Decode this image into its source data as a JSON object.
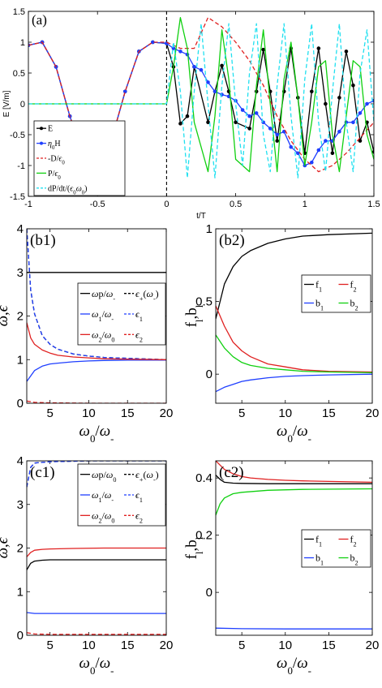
{
  "chart_data": [
    {
      "id": "a",
      "type": "line",
      "panel_label": "(a)",
      "xlabel": "t/T",
      "ylabel": "E [V/m]",
      "xlim": [
        -1,
        1.5
      ],
      "ylim": [
        -1.5,
        1.5
      ],
      "xticks": [
        "-1",
        "-0.5",
        "0",
        "0.5",
        "1",
        "1.5"
      ],
      "yticks": [
        "1.5",
        "1",
        "0.5",
        "0",
        "-0.5",
        "-1",
        "-1.5"
      ],
      "legend_position": "bottom-left",
      "vertical_line_x": 0,
      "series": [
        {
          "name": "E",
          "color": "#000000",
          "dash": "solid",
          "markers": true,
          "x": [
            -1,
            -0.9,
            -0.8,
            -0.7,
            -0.6,
            -0.5,
            -0.4,
            -0.3,
            -0.2,
            -0.1,
            0,
            0.05,
            0.1,
            0.15,
            0.2,
            0.3,
            0.35,
            0.4,
            0.45,
            0.5,
            0.6,
            0.65,
            0.7,
            0.75,
            0.8,
            0.85,
            0.9,
            0.95,
            1.0,
            1.05,
            1.1,
            1.15,
            1.2,
            1.25,
            1.3,
            1.35,
            1.4,
            1.45,
            1.5
          ],
          "y": [
            0.95,
            1.0,
            0.6,
            -0.2,
            -0.85,
            -1.0,
            -0.6,
            0.2,
            0.85,
            1.0,
            0.98,
            0.6,
            -0.32,
            -0.2,
            0.6,
            -0.3,
            0.2,
            0.62,
            0.2,
            -0.3,
            -0.4,
            0.2,
            0.88,
            0.2,
            -0.6,
            0.2,
            0.9,
            0.1,
            -0.8,
            0.2,
            0.9,
            0.0,
            -0.8,
            0.1,
            0.85,
            0.3,
            -0.6,
            -0.3,
            -0.78
          ]
        },
        {
          "name": "η₀H",
          "color": "#1f3fff",
          "dash": "solid",
          "markers": true,
          "x": [
            -1,
            -0.9,
            -0.8,
            -0.7,
            -0.6,
            -0.5,
            -0.4,
            -0.3,
            -0.2,
            -0.1,
            0,
            0.05,
            0.1,
            0.15,
            0.2,
            0.25,
            0.3,
            0.35,
            0.4,
            0.45,
            0.5,
            0.55,
            0.6,
            0.65,
            0.7,
            0.75,
            0.8,
            0.85,
            0.9,
            0.95,
            1.0,
            1.05,
            1.1,
            1.15,
            1.2,
            1.25,
            1.3,
            1.35,
            1.4,
            1.45,
            1.5
          ],
          "y": [
            0.95,
            1.0,
            0.6,
            -0.2,
            -0.85,
            -1.0,
            -0.6,
            0.2,
            0.85,
            1.0,
            0.98,
            0.9,
            0.85,
            0.8,
            0.6,
            0.55,
            0.35,
            0.2,
            0.15,
            0.12,
            0.05,
            -0.1,
            -0.2,
            -0.15,
            -0.3,
            -0.4,
            -0.5,
            -0.45,
            -0.7,
            -0.8,
            -1.0,
            -0.95,
            -0.75,
            -0.6,
            -0.6,
            -0.45,
            -0.3,
            -0.3,
            -0.15,
            0.0,
            0.05
          ]
        },
        {
          "name": "-D/ϵ₀",
          "color": "#e02020",
          "dash": "dash",
          "markers": false,
          "x": [
            -1,
            -0.9,
            -0.8,
            -0.7,
            -0.6,
            -0.5,
            -0.4,
            -0.3,
            -0.2,
            -0.1,
            0,
            0.1,
            0.2,
            0.3,
            0.4,
            0.5,
            0.6,
            0.7,
            0.8,
            0.9,
            1.0,
            1.1,
            1.2,
            1.3,
            1.4,
            1.5
          ],
          "y": [
            0.95,
            1.0,
            0.6,
            -0.2,
            -0.85,
            -1.0,
            -0.6,
            0.2,
            0.85,
            1.0,
            1.0,
            0.9,
            0.9,
            1.4,
            1.25,
            1.0,
            0.7,
            0.3,
            -0.2,
            -0.6,
            -0.9,
            -1.1,
            -1.0,
            -0.8,
            -0.55,
            -0.3
          ]
        },
        {
          "name": "P/ϵ₀",
          "color": "#10d010",
          "dash": "solid",
          "markers": false,
          "x": [
            -1,
            0,
            0.05,
            0.1,
            0.15,
            0.2,
            0.3,
            0.35,
            0.4,
            0.45,
            0.5,
            0.6,
            0.65,
            0.7,
            0.75,
            0.8,
            0.85,
            0.9,
            0.95,
            1.0,
            1.05,
            1.1,
            1.15,
            1.2,
            1.25,
            1.3,
            1.35,
            1.4,
            1.45,
            1.5
          ],
          "y": [
            0,
            0,
            0.6,
            1.4,
            0.9,
            -0.3,
            -1.1,
            -0.2,
            1.2,
            0.4,
            -0.9,
            -1.1,
            0.3,
            1.2,
            0.0,
            -1.1,
            0.4,
            1.0,
            0.1,
            -1.0,
            -0.3,
            0.6,
            0.7,
            -0.5,
            -1.1,
            -0.2,
            0.7,
            0.6,
            -0.5,
            -0.9
          ]
        },
        {
          "name": "dP/dt/(ϵ₀ω₀)",
          "color": "#20e0f0",
          "dash": "dash",
          "markers": false,
          "x": [
            -1,
            0,
            0.05,
            0.1,
            0.15,
            0.2,
            0.25,
            0.3,
            0.35,
            0.4,
            0.45,
            0.5,
            0.55,
            0.6,
            0.65,
            0.7,
            0.75,
            0.8,
            0.85,
            0.9,
            0.95,
            1.0,
            1.05,
            1.1,
            1.15,
            1.2,
            1.25,
            1.3,
            1.35,
            1.4,
            1.45,
            1.5
          ],
          "y": [
            0,
            0,
            1.0,
            0.2,
            -1.2,
            0.2,
            1.3,
            0.0,
            -1.2,
            0.3,
            1.3,
            0.0,
            -1.0,
            0.5,
            1.3,
            -0.5,
            -1.1,
            0.3,
            1.3,
            -0.2,
            -1.2,
            0.4,
            1.3,
            -0.3,
            -1.1,
            0.2,
            1.3,
            -0.3,
            -1.1,
            0.5,
            1.2,
            -0.3
          ]
        }
      ]
    },
    {
      "id": "b1",
      "type": "line",
      "panel_label": "(b1)",
      "xlabel": "ω₀/ω₋",
      "ylabel": "ω,ϵ",
      "xlim": [
        2,
        20
      ],
      "ylim": [
        0,
        4
      ],
      "xticks": [
        "5",
        "10",
        "15",
        "20"
      ],
      "yticks": [
        "4",
        "3",
        "2",
        "1",
        "0"
      ],
      "legend_position": "middle-right",
      "legend_columns": 2,
      "series": [
        {
          "name": "ωp/ω₋",
          "color": "#000000",
          "dash": "solid",
          "x": [
            2,
            5,
            10,
            15,
            20
          ],
          "y": [
            3.0,
            3.0,
            3.0,
            3.0,
            3.0
          ]
        },
        {
          "name": "ϵ₊(ω₋)",
          "color": "#000000",
          "dash": "dash",
          "x": [
            2,
            2.5,
            3,
            4,
            5,
            6,
            8,
            10,
            12,
            15,
            20
          ],
          "y": [
            4.0,
            2.6,
            2.05,
            1.55,
            1.35,
            1.24,
            1.13,
            1.08,
            1.05,
            1.03,
            1.0
          ]
        },
        {
          "name": "ω₁/ω₋",
          "color": "#1f3fff",
          "dash": "solid",
          "x": [
            2,
            3,
            4,
            5,
            6,
            8,
            10,
            12,
            15,
            20
          ],
          "y": [
            0.5,
            0.75,
            0.85,
            0.9,
            0.92,
            0.95,
            0.97,
            0.98,
            0.99,
            0.99
          ]
        },
        {
          "name": "ϵ₁",
          "color": "#1f3fff",
          "dash": "dash",
          "x": [
            2,
            2.5,
            3,
            4,
            5,
            6,
            8,
            10,
            12,
            15,
            20
          ],
          "y": [
            4.0,
            2.6,
            2.05,
            1.55,
            1.35,
            1.24,
            1.13,
            1.08,
            1.05,
            1.03,
            1.0
          ]
        },
        {
          "name": "ω₂/ω₀",
          "color": "#e02020",
          "dash": "solid",
          "x": [
            2,
            2.5,
            3,
            4,
            5,
            6,
            8,
            10,
            12,
            15,
            20
          ],
          "y": [
            1.85,
            1.5,
            1.35,
            1.22,
            1.15,
            1.1,
            1.06,
            1.04,
            1.02,
            1.01,
            1.0
          ]
        },
        {
          "name": "ϵ₂",
          "color": "#e02020",
          "dash": "dash",
          "x": [
            2,
            3,
            5,
            10,
            15,
            20
          ],
          "y": [
            0.05,
            0.02,
            0.01,
            0.0,
            0.0,
            0.0
          ]
        }
      ]
    },
    {
      "id": "b2",
      "type": "line",
      "panel_label": "(b2)",
      "xlabel": "ω₀/ω₋",
      "ylabel": "f_l,b_l",
      "xlim": [
        2,
        20
      ],
      "ylim": [
        -0.2,
        1.0
      ],
      "xticks": [
        "5",
        "10",
        "15",
        "20"
      ],
      "yticks": [
        "1",
        "0.5",
        "0"
      ],
      "legend_position": "middle-right",
      "legend_columns": 2,
      "series": [
        {
          "name": "f₁",
          "color": "#000000",
          "dash": "solid",
          "x": [
            2,
            3,
            4,
            5,
            6,
            8,
            10,
            12,
            15,
            20
          ],
          "y": [
            0.38,
            0.62,
            0.74,
            0.81,
            0.85,
            0.9,
            0.93,
            0.95,
            0.96,
            0.97
          ]
        },
        {
          "name": "f₂",
          "color": "#e02020",
          "dash": "solid",
          "x": [
            2,
            3,
            4,
            5,
            6,
            8,
            10,
            12,
            15,
            20
          ],
          "y": [
            0.47,
            0.33,
            0.22,
            0.16,
            0.12,
            0.07,
            0.05,
            0.03,
            0.02,
            0.015
          ]
        },
        {
          "name": "b₁",
          "color": "#1f3fff",
          "dash": "solid",
          "x": [
            2,
            3,
            4,
            5,
            6,
            8,
            10,
            12,
            15,
            20
          ],
          "y": [
            -0.12,
            -0.09,
            -0.07,
            -0.05,
            -0.04,
            -0.025,
            -0.015,
            -0.01,
            -0.005,
            0.0
          ]
        },
        {
          "name": "b₂",
          "color": "#10d010",
          "dash": "solid",
          "x": [
            2,
            3,
            4,
            5,
            6,
            8,
            10,
            12,
            15,
            20
          ],
          "y": [
            0.27,
            0.18,
            0.12,
            0.08,
            0.06,
            0.04,
            0.03,
            0.02,
            0.015,
            0.01
          ]
        }
      ]
    },
    {
      "id": "c1",
      "type": "line",
      "panel_label": "(c1)",
      "xlabel": "ω₀/ω₋",
      "ylabel": "ω,ϵ",
      "xlim": [
        2,
        20
      ],
      "ylim": [
        0,
        4
      ],
      "xticks": [
        "5",
        "10",
        "15",
        "20"
      ],
      "yticks": [
        "4",
        "3",
        "2",
        "1",
        "0"
      ],
      "legend_position": "top-right",
      "legend_columns": 2,
      "series": [
        {
          "name": "ωp/ω₀",
          "color": "#000000",
          "dash": "solid",
          "x": [
            2,
            2.5,
            3,
            4,
            5,
            8,
            12,
            20
          ],
          "y": [
            1.5,
            1.65,
            1.7,
            1.72,
            1.73,
            1.73,
            1.73,
            1.73
          ]
        },
        {
          "name": "ϵ₊(ω₋)",
          "color": "#000000",
          "dash": "dash",
          "x": [
            2,
            2.5,
            3,
            5,
            10,
            20
          ],
          "y": [
            3.4,
            3.85,
            3.95,
            3.98,
            4.0,
            4.0
          ]
        },
        {
          "name": "ω₁/ω₋",
          "color": "#1f3fff",
          "dash": "solid",
          "x": [
            2,
            3,
            5,
            10,
            15,
            20
          ],
          "y": [
            0.52,
            0.5,
            0.5,
            0.5,
            0.5,
            0.5
          ]
        },
        {
          "name": "ϵ₁",
          "color": "#1f3fff",
          "dash": "dash",
          "x": [
            2,
            2.5,
            3,
            5,
            10,
            20
          ],
          "y": [
            3.4,
            3.85,
            3.95,
            3.98,
            4.0,
            4.0
          ]
        },
        {
          "name": "ω₂/ω₀",
          "color": "#e02020",
          "dash": "solid",
          "x": [
            2,
            2.5,
            3,
            4,
            5,
            8,
            12,
            20
          ],
          "y": [
            1.8,
            1.9,
            1.95,
            1.97,
            1.98,
            1.99,
            2.0,
            2.0
          ]
        },
        {
          "name": "ϵ₂",
          "color": "#e02020",
          "dash": "dash",
          "x": [
            2,
            3,
            5,
            10,
            20
          ],
          "y": [
            0.06,
            0.03,
            0.02,
            0.02,
            0.02
          ]
        }
      ]
    },
    {
      "id": "c2",
      "type": "line",
      "panel_label": "(c2)",
      "xlabel": "ω₀/ω₋",
      "ylabel": "f_l,b_l",
      "xlim": [
        2,
        20
      ],
      "ylim": [
        -0.15,
        0.46
      ],
      "xticks": [
        "5",
        "10",
        "15",
        "20"
      ],
      "yticks": [
        "0.4",
        "0.2",
        "0"
      ],
      "legend_position": "middle-right",
      "legend_columns": 2,
      "series": [
        {
          "name": "f₁",
          "color": "#000000",
          "dash": "solid",
          "x": [
            2,
            2.5,
            3,
            4,
            5,
            8,
            12,
            20
          ],
          "y": [
            0.41,
            0.395,
            0.385,
            0.382,
            0.381,
            0.38,
            0.38,
            0.38
          ]
        },
        {
          "name": "f₂",
          "color": "#e02020",
          "dash": "solid",
          "x": [
            2,
            3,
            4,
            5,
            6,
            8,
            10,
            12,
            15,
            20
          ],
          "y": [
            0.46,
            0.43,
            0.415,
            0.405,
            0.4,
            0.395,
            0.392,
            0.39,
            0.388,
            0.385
          ]
        },
        {
          "name": "b₁",
          "color": "#1f3fff",
          "dash": "solid",
          "x": [
            2,
            5,
            10,
            15,
            20
          ],
          "y": [
            -0.125,
            -0.127,
            -0.128,
            -0.128,
            -0.128
          ]
        },
        {
          "name": "b₂",
          "color": "#10d010",
          "dash": "solid",
          "x": [
            2,
            2.5,
            3,
            4,
            5,
            8,
            12,
            20
          ],
          "y": [
            0.27,
            0.31,
            0.33,
            0.345,
            0.35,
            0.357,
            0.36,
            0.362
          ]
        }
      ]
    }
  ]
}
